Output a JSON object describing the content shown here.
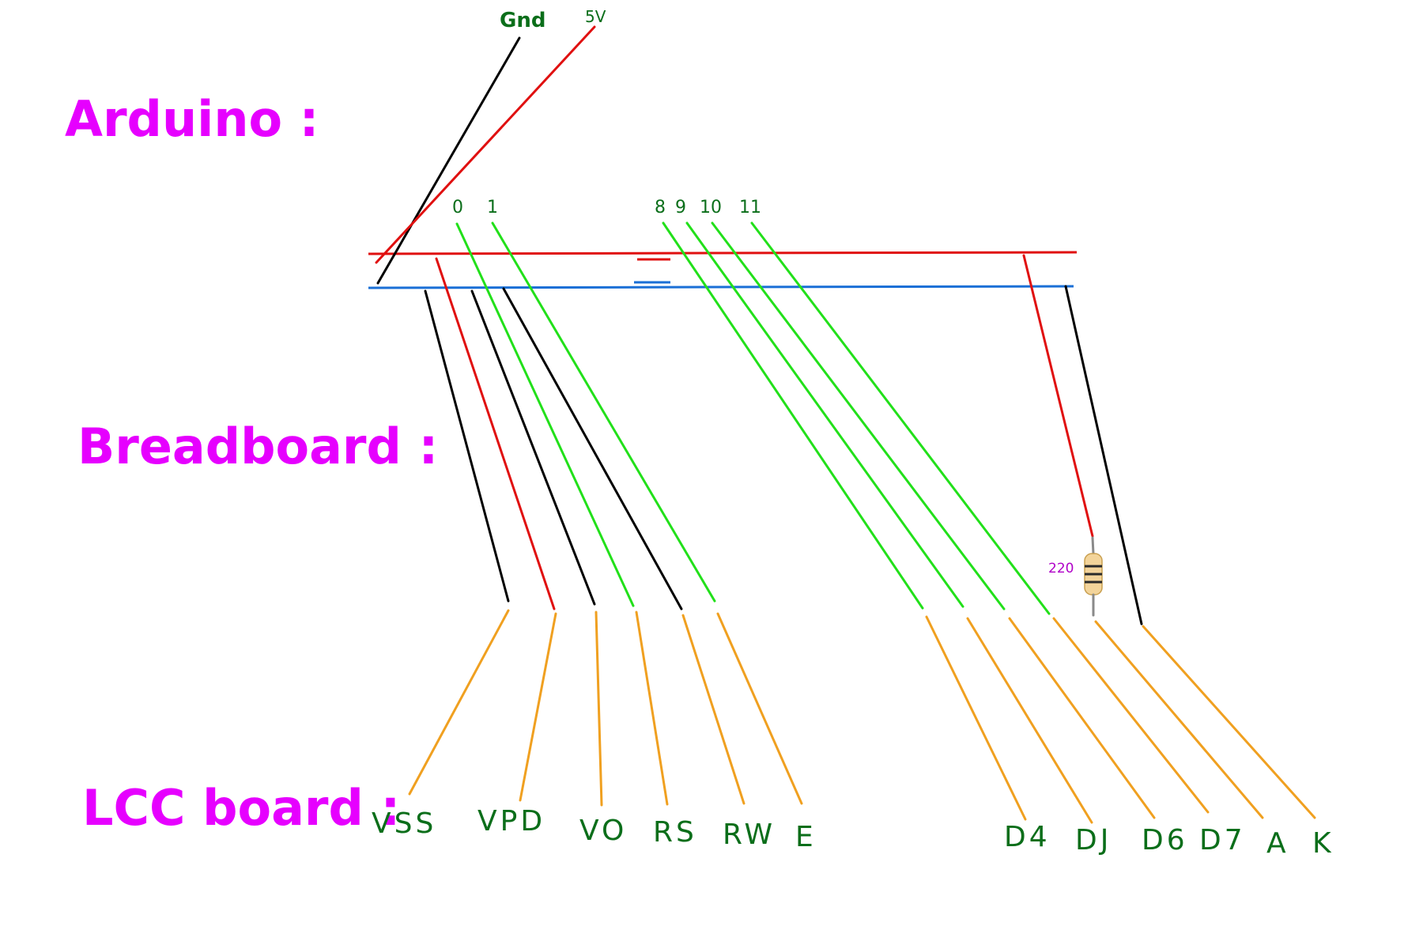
{
  "labels": {
    "arduino": "Arduino :",
    "breadboard": "Breadboard :",
    "lcd": "LCC board :"
  },
  "arduino_pins": {
    "gnd": "Gnd",
    "v5": "5V",
    "p0": "0",
    "p1": "1",
    "p8": "8",
    "p9": "9",
    "p10": "10",
    "p11": "11"
  },
  "resistor": {
    "value": "220"
  },
  "lcd_pins": [
    "VSS",
    "VPD",
    "VO",
    "RS",
    "RW",
    "E",
    "D4",
    "DJ",
    "D6",
    "D7",
    "A",
    "K"
  ],
  "colors": {
    "label": "#e600ff",
    "pin_text": "#0b6e1a",
    "ground": "#000000",
    "power": "#e01010",
    "signal": "#22e01a",
    "lcd_lead": "#f0a020",
    "rail_power": "#e01010",
    "rail_ground": "#1a6fd6",
    "resistor_body": "#f3d49a",
    "resistor_band": "#2a2a2a"
  }
}
